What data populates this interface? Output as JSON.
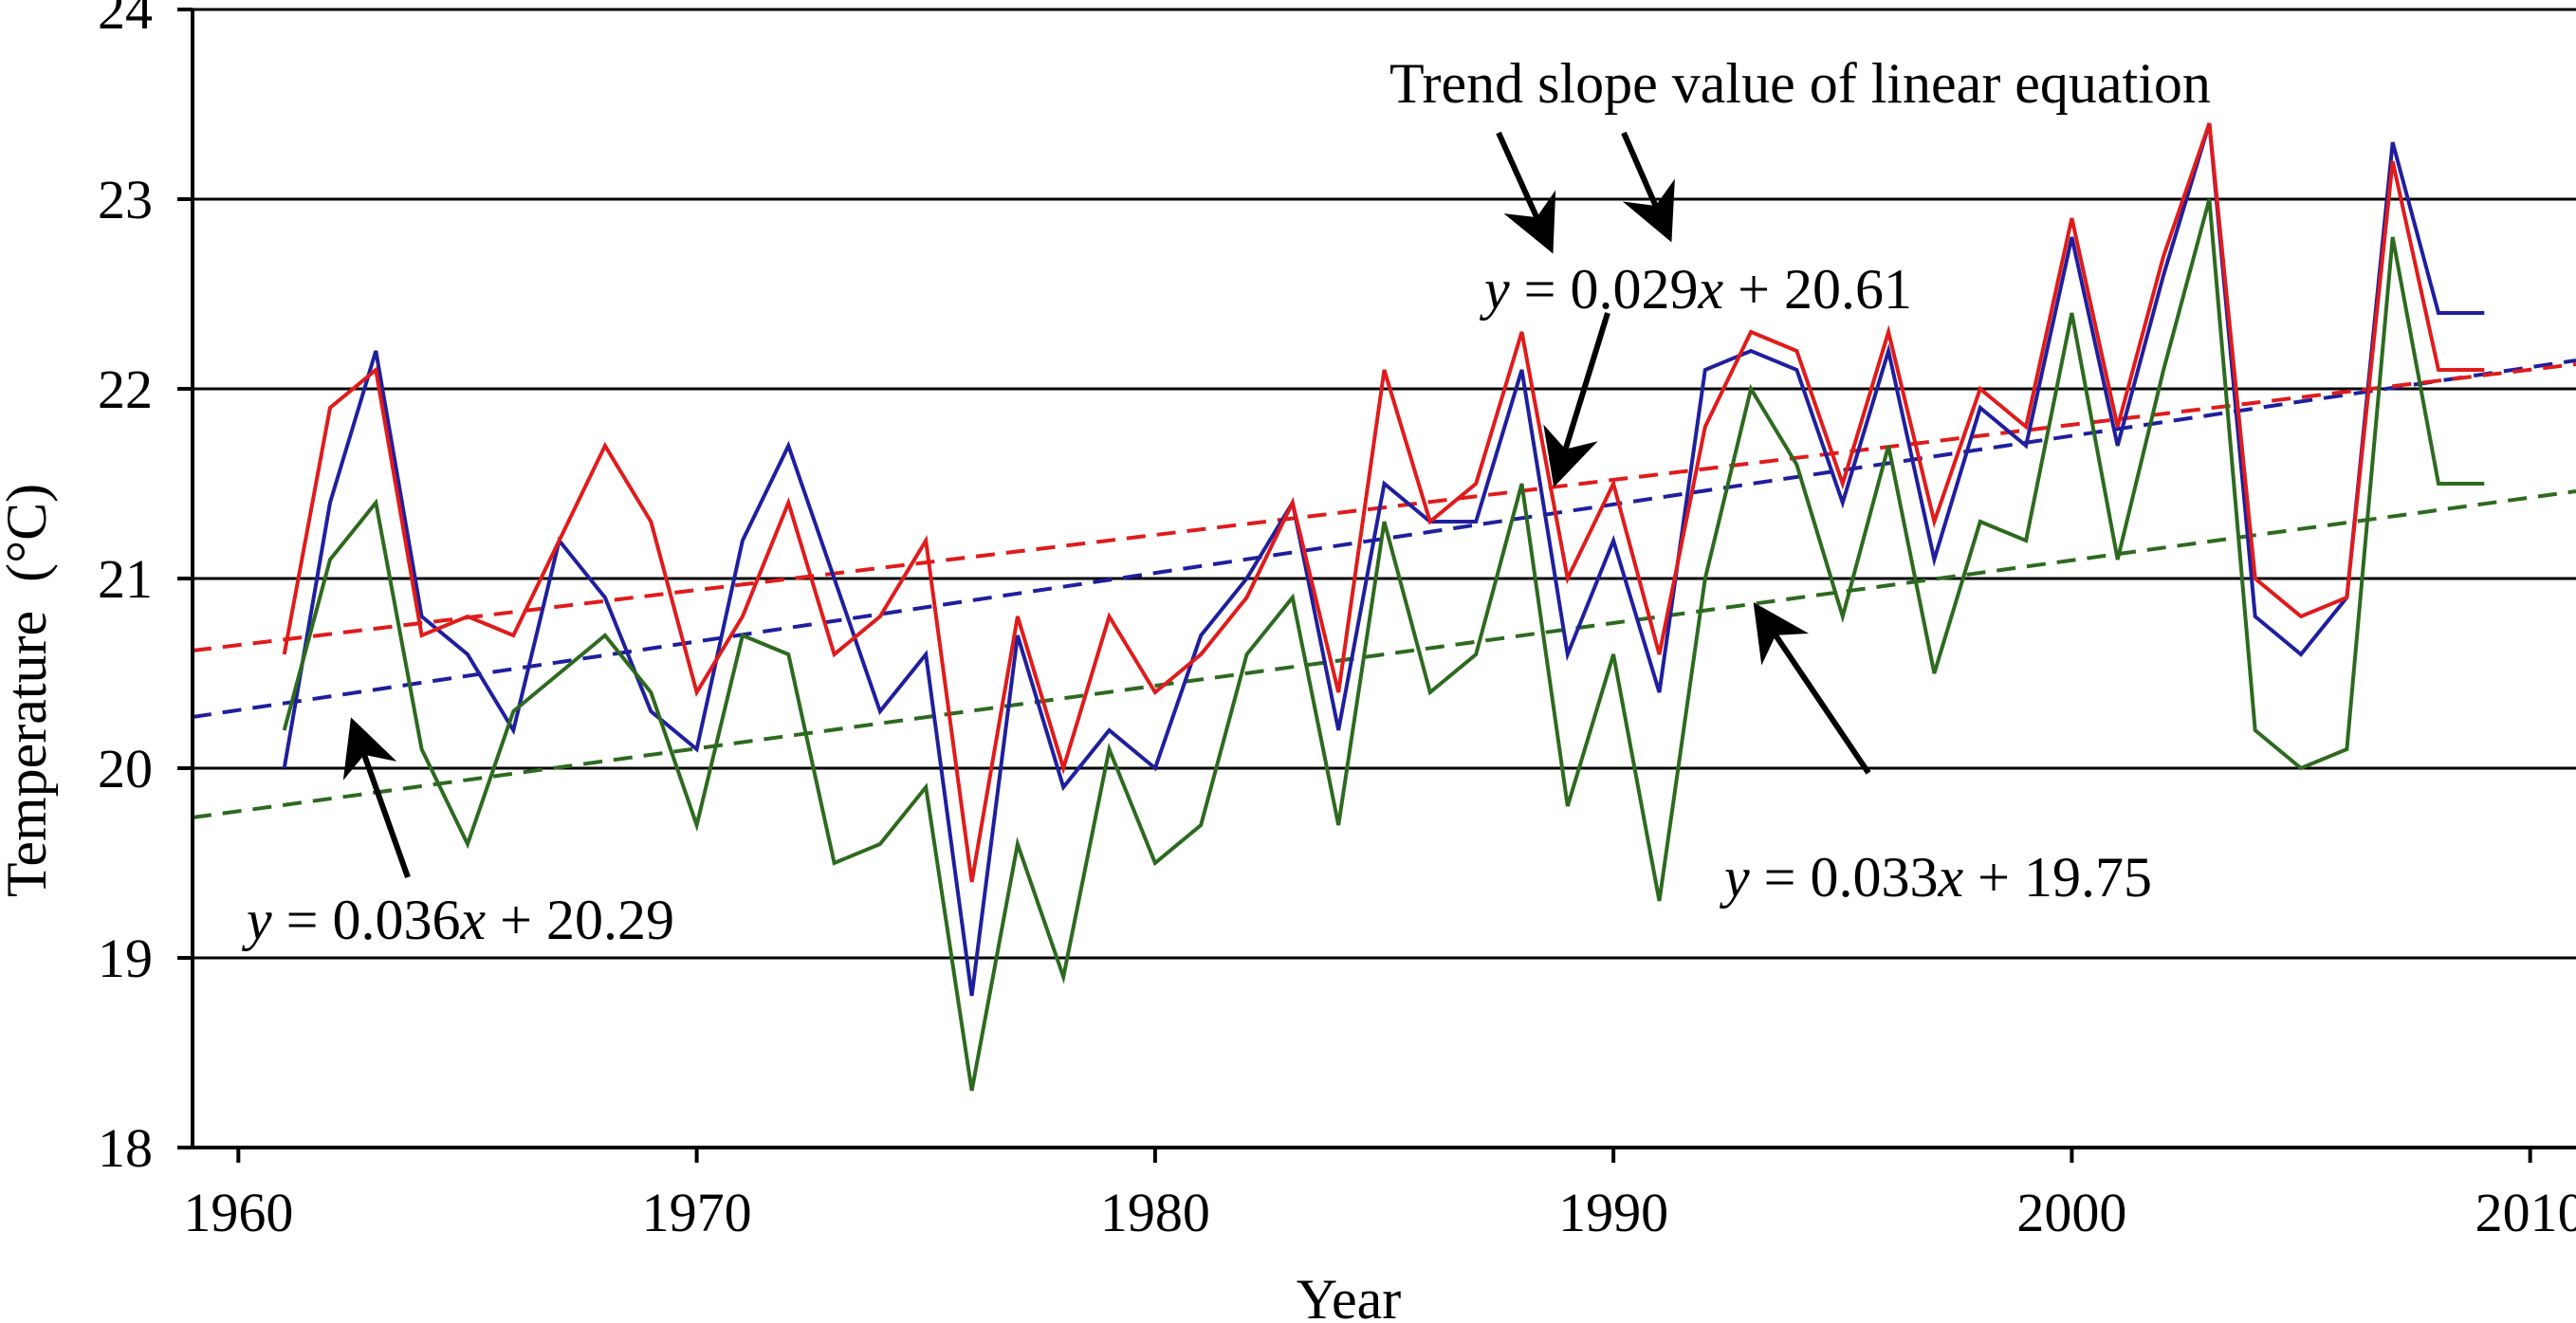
{
  "chart_data": {
    "type": "line",
    "title": "",
    "xlabel": "Year",
    "ylabel": "Temperature  (°C)",
    "xlim": [
      1959,
      2011
    ],
    "ylim": [
      18,
      24
    ],
    "xticks": [
      1960,
      1970,
      1980,
      1990,
      2000,
      2010
    ],
    "yticks": [
      18,
      19,
      20,
      21,
      22,
      23,
      24
    ],
    "grid": "horizontal",
    "x": [
      1961,
      1962,
      1963,
      1964,
      1965,
      1966,
      1967,
      1968,
      1969,
      1970,
      1971,
      1972,
      1973,
      1974,
      1975,
      1976,
      1977,
      1978,
      1979,
      1980,
      1981,
      1982,
      1983,
      1984,
      1985,
      1986,
      1987,
      1988,
      1989,
      1990,
      1991,
      1992,
      1993,
      1994,
      1995,
      1996,
      1997,
      1998,
      1999,
      2000,
      2001,
      2002,
      2003,
      2004,
      2005,
      2006,
      2007,
      2008,
      2009
    ],
    "series": [
      {
        "color": "#1f1f9e",
        "values": [
          20.0,
          21.4,
          22.2,
          20.8,
          20.6,
          20.2,
          21.2,
          20.9,
          20.3,
          20.1,
          21.2,
          21.7,
          21.0,
          20.3,
          20.6,
          18.8,
          20.7,
          19.9,
          20.2,
          20.0,
          20.7,
          21.0,
          21.4,
          20.2,
          21.5,
          21.3,
          21.3,
          22.1,
          20.6,
          21.2,
          20.4,
          22.1,
          22.2,
          22.1,
          21.4,
          22.2,
          21.1,
          21.9,
          21.7,
          22.8,
          21.7,
          22.6,
          23.4,
          20.8,
          20.6,
          20.9,
          23.3,
          22.4,
          22.4
        ]
      },
      {
        "color": "#e01b1b",
        "values": [
          20.6,
          21.9,
          22.1,
          20.7,
          20.8,
          20.7,
          21.2,
          21.7,
          21.3,
          20.4,
          20.8,
          21.4,
          20.6,
          20.8,
          21.2,
          19.4,
          20.8,
          20.0,
          20.8,
          20.4,
          20.6,
          20.9,
          21.4,
          20.4,
          22.1,
          21.3,
          21.5,
          22.3,
          21.0,
          21.5,
          20.6,
          21.8,
          22.3,
          22.2,
          21.5,
          22.3,
          21.3,
          22.0,
          21.8,
          22.9,
          21.8,
          22.7,
          23.4,
          21.0,
          20.8,
          20.9,
          23.2,
          22.1,
          22.1
        ]
      },
      {
        "color": "#2d6a1f",
        "values": [
          20.2,
          21.1,
          21.4,
          20.1,
          19.6,
          20.3,
          20.5,
          20.7,
          20.4,
          19.7,
          20.7,
          20.6,
          19.5,
          19.6,
          19.9,
          18.3,
          19.6,
          18.9,
          20.1,
          19.5,
          19.7,
          20.6,
          20.9,
          19.7,
          21.3,
          20.4,
          20.6,
          21.5,
          19.8,
          20.6,
          19.3,
          21.0,
          22.0,
          21.6,
          20.8,
          21.7,
          20.5,
          21.3,
          21.2,
          22.4,
          21.1,
          22.1,
          23.0,
          20.2,
          20.0,
          20.1,
          22.8,
          21.5,
          21.5
        ]
      }
    ],
    "trend_lines": [
      {
        "color": "#1f1f9e",
        "x": [
          1959,
          2011
        ],
        "y": [
          20.27,
          22.15
        ]
      },
      {
        "color": "#e01b1b",
        "x": [
          1959,
          2011
        ],
        "y": [
          20.62,
          22.13
        ]
      },
      {
        "color": "#2d6a1f",
        "x": [
          1959,
          2011
        ],
        "y": [
          19.74,
          21.46
        ]
      }
    ],
    "annotations": {
      "header": "Trend slope value of linear equation",
      "eq_red": {
        "var": "y",
        "rest": " = 0.029",
        "xvar": "x",
        "tail": " + 20.61"
      },
      "eq_blue": {
        "var": "y",
        "rest": " = 0.036",
        "xvar": "x",
        "tail": " + 20.29"
      },
      "eq_green": {
        "var": "y",
        "rest": " = 0.033",
        "xvar": "x",
        "tail": " + 19.75"
      }
    }
  }
}
